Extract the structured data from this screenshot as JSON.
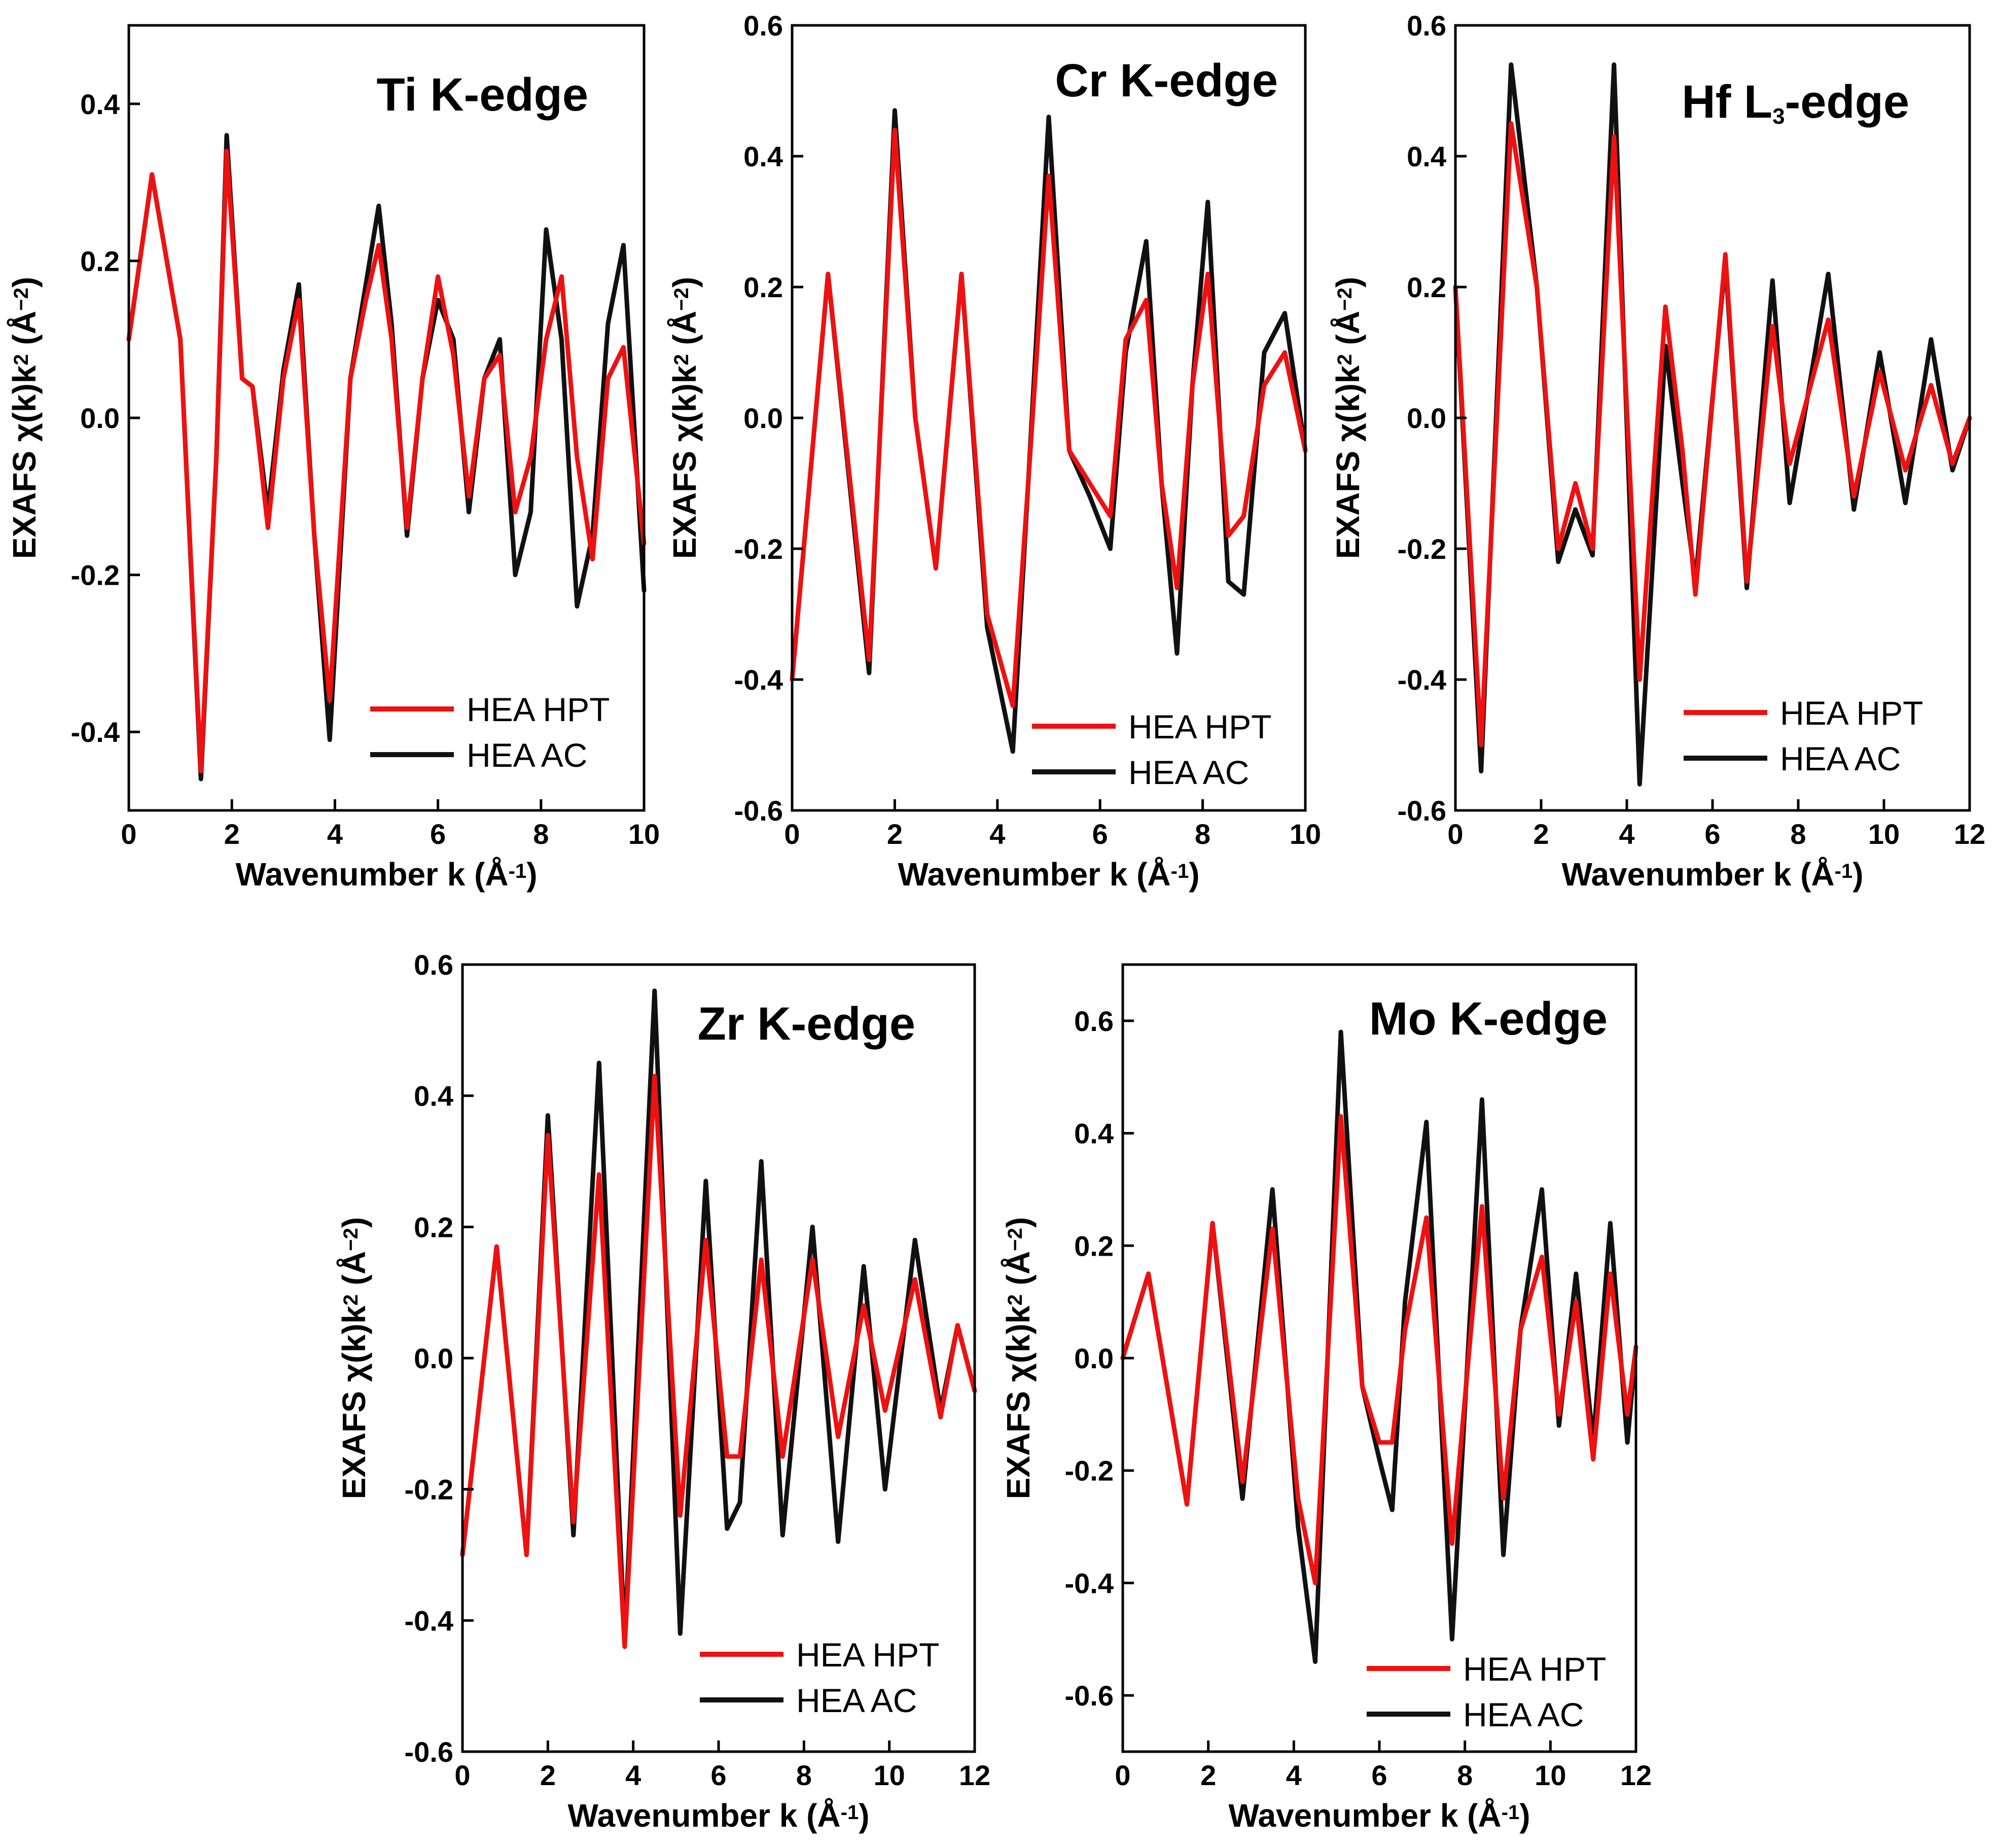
{
  "chart_data": [
    {
      "type": "line",
      "title": "Ti K-edge",
      "title_parts": [
        "Ti K-edge"
      ],
      "xlabel": "Wavenumber k (Å-1)",
      "xlabel_parts": [
        "Wavenumber k (Å",
        "-1",
        ")"
      ],
      "ylabel": "EXAFS χ(k)k2 (Å−2)",
      "ylabel_parts": [
        "EXAFS χ(k)k",
        "2",
        " (Å",
        "−2",
        ")"
      ],
      "xlim": [
        0,
        10
      ],
      "ylim": [
        -0.5,
        0.5
      ],
      "xticks": [
        0,
        2,
        4,
        6,
        8,
        10
      ],
      "xtick_labels": [
        "0",
        "2",
        "4",
        "6",
        "8",
        "10"
      ],
      "yticks": [
        -0.4,
        -0.2,
        0.0,
        0.2,
        0.4
      ],
      "ytick_labels": [
        "-0.4",
        "-0.2",
        "0.0",
        "0.2",
        "0.4"
      ],
      "legend_position": "bottom-right",
      "series": [
        {
          "name": "HEA HPT",
          "color": "#ee1111",
          "x": [
            0,
            0.45,
            1.0,
            1.4,
            1.7,
            1.9,
            2.2,
            2.4,
            2.7,
            3.0,
            3.3,
            3.6,
            3.9,
            4.3,
            4.6,
            4.85,
            5.1,
            5.4,
            5.7,
            6.0,
            6.3,
            6.6,
            6.9,
            7.2,
            7.5,
            7.8,
            8.1,
            8.4,
            8.7,
            9.0,
            9.3,
            9.6,
            10.0
          ],
          "y": [
            0.1,
            0.31,
            0.1,
            -0.45,
            -0.05,
            0.34,
            0.05,
            0.04,
            -0.14,
            0.05,
            0.15,
            -0.15,
            -0.36,
            0.05,
            0.15,
            0.22,
            0.1,
            -0.14,
            0.05,
            0.18,
            0.08,
            -0.1,
            0.05,
            0.08,
            -0.12,
            -0.05,
            0.1,
            0.18,
            -0.05,
            -0.18,
            0.05,
            0.09,
            -0.16
          ]
        },
        {
          "name": "HEA AC",
          "color": "#111111",
          "x": [
            0,
            0.45,
            1.0,
            1.4,
            1.7,
            1.9,
            2.2,
            2.4,
            2.7,
            3.0,
            3.3,
            3.6,
            3.9,
            4.3,
            4.6,
            4.85,
            5.1,
            5.4,
            5.7,
            6.0,
            6.3,
            6.6,
            6.9,
            7.2,
            7.5,
            7.8,
            8.1,
            8.4,
            8.7,
            9.0,
            9.3,
            9.6,
            10.0
          ],
          "y": [
            0.1,
            0.31,
            0.1,
            -0.46,
            -0.05,
            0.36,
            0.05,
            0.04,
            -0.12,
            0.06,
            0.17,
            -0.15,
            -0.41,
            0.05,
            0.17,
            0.27,
            0.12,
            -0.15,
            0.05,
            0.15,
            0.1,
            -0.12,
            0.05,
            0.1,
            -0.2,
            -0.12,
            0.24,
            0.1,
            -0.24,
            -0.15,
            0.12,
            0.22,
            -0.22
          ]
        }
      ]
    },
    {
      "type": "line",
      "title": "Cr K-edge",
      "title_parts": [
        "Cr K-edge"
      ],
      "xlabel": "Wavenumber k (Å-1)",
      "xlabel_parts": [
        "Wavenumber k (Å",
        "-1",
        ")"
      ],
      "ylabel": "EXAFS χ(k)k2 (Å−2)",
      "ylabel_parts": [
        "EXAFS χ(k)k",
        "2",
        " (Å",
        "−2",
        ")"
      ],
      "xlim": [
        0,
        10
      ],
      "ylim": [
        -0.6,
        0.6
      ],
      "xticks": [
        0,
        2,
        4,
        6,
        8,
        10
      ],
      "xtick_labels": [
        "0",
        "2",
        "4",
        "6",
        "8",
        "10"
      ],
      "yticks": [
        -0.6,
        -0.4,
        -0.2,
        0.0,
        0.2,
        0.4,
        0.6
      ],
      "ytick_labels": [
        "-0.6",
        "-0.4",
        "-0.2",
        "0.0",
        "0.2",
        "0.4",
        "0.6"
      ],
      "legend_position": "bottom-right",
      "series": [
        {
          "name": "HEA HPT",
          "color": "#ee1111",
          "x": [
            0,
            0.7,
            1.5,
            2.0,
            2.4,
            2.8,
            3.3,
            3.8,
            4.3,
            4.6,
            5.0,
            5.4,
            5.8,
            6.2,
            6.5,
            6.9,
            7.2,
            7.5,
            7.8,
            8.1,
            8.5,
            8.8,
            9.2,
            9.6,
            10.0
          ],
          "y": [
            -0.4,
            0.22,
            -0.37,
            0.44,
            0.0,
            -0.23,
            0.22,
            -0.3,
            -0.44,
            -0.1,
            0.37,
            -0.05,
            -0.1,
            -0.15,
            0.12,
            0.18,
            -0.1,
            -0.26,
            0.05,
            0.22,
            -0.18,
            -0.15,
            0.05,
            0.1,
            -0.05
          ]
        },
        {
          "name": "HEA AC",
          "color": "#111111",
          "x": [
            0,
            0.7,
            1.5,
            2.0,
            2.4,
            2.8,
            3.3,
            3.8,
            4.3,
            4.6,
            5.0,
            5.4,
            5.8,
            6.2,
            6.5,
            6.9,
            7.2,
            7.5,
            7.8,
            8.1,
            8.5,
            8.8,
            9.2,
            9.6,
            10.0
          ],
          "y": [
            -0.4,
            0.22,
            -0.39,
            0.47,
            0.0,
            -0.23,
            0.22,
            -0.32,
            -0.51,
            -0.1,
            0.46,
            -0.05,
            -0.12,
            -0.2,
            0.1,
            0.27,
            -0.1,
            -0.36,
            0.05,
            0.33,
            -0.25,
            -0.27,
            0.1,
            0.16,
            -0.05
          ]
        }
      ]
    },
    {
      "type": "line",
      "title": "Hf L3-edge",
      "title_parts": [
        "Hf L",
        "3",
        "-edge"
      ],
      "xlabel": "Wavenumber k (Å-1)",
      "xlabel_parts": [
        "Wavenumber k (Å",
        "-1",
        ")"
      ],
      "ylabel": "EXAFS χ(k)k2 (Å−2)",
      "ylabel_parts": [
        "EXAFS χ(k)k",
        "2",
        " (Å",
        "−2",
        ")"
      ],
      "xlim": [
        0,
        12
      ],
      "ylim": [
        -0.6,
        0.6
      ],
      "xticks": [
        0,
        2,
        4,
        6,
        8,
        10,
        12
      ],
      "xtick_labels": [
        "0",
        "2",
        "4",
        "6",
        "8",
        "10",
        "12"
      ],
      "yticks": [
        -0.6,
        -0.4,
        -0.2,
        0.0,
        0.2,
        0.4,
        0.6
      ],
      "ytick_labels": [
        "-0.6",
        "-0.4",
        "-0.2",
        "0.0",
        "0.2",
        "0.4",
        "0.6"
      ],
      "legend_position": "bottom-right",
      "series": [
        {
          "name": "HEA HPT",
          "color": "#ee1111",
          "x": [
            0,
            0.6,
            1.3,
            1.9,
            2.4,
            2.8,
            3.2,
            3.7,
            4.3,
            4.9,
            5.3,
            5.6,
            6.3,
            6.8,
            7.4,
            7.8,
            8.7,
            9.3,
            9.9,
            10.5,
            11.1,
            11.6,
            12.0
          ],
          "y": [
            0.2,
            -0.5,
            0.45,
            0.2,
            -0.2,
            -0.1,
            -0.2,
            0.43,
            -0.4,
            0.17,
            -0.05,
            -0.27,
            0.25,
            -0.25,
            0.14,
            -0.07,
            0.15,
            -0.12,
            0.07,
            -0.08,
            0.05,
            -0.07,
            0.0
          ]
        },
        {
          "name": "HEA AC",
          "color": "#111111",
          "x": [
            0,
            0.6,
            1.3,
            1.9,
            2.4,
            2.8,
            3.2,
            3.7,
            4.3,
            4.9,
            5.3,
            5.6,
            6.3,
            6.8,
            7.4,
            7.8,
            8.7,
            9.3,
            9.9,
            10.5,
            11.1,
            11.6,
            12.0
          ],
          "y": [
            0.2,
            -0.54,
            0.54,
            0.2,
            -0.22,
            -0.14,
            -0.21,
            0.54,
            -0.56,
            0.11,
            -0.1,
            -0.25,
            0.24,
            -0.26,
            0.21,
            -0.13,
            0.22,
            -0.14,
            0.1,
            -0.13,
            0.12,
            -0.08,
            0.0
          ]
        }
      ]
    },
    {
      "type": "line",
      "title": "Zr K-edge",
      "title_parts": [
        "Zr K-edge"
      ],
      "xlabel": "Wavenumber k (Å-1)",
      "xlabel_parts": [
        "Wavenumber k (Å",
        "-1",
        ")"
      ],
      "ylabel": "EXAFS χ(k)k2 (Å−2)",
      "ylabel_parts": [
        "EXAFS χ(k)k",
        "2",
        " (Å",
        "−2",
        ")"
      ],
      "xlim": [
        0,
        12
      ],
      "ylim": [
        -0.6,
        0.6
      ],
      "xticks": [
        0,
        2,
        4,
        6,
        8,
        10,
        12
      ],
      "xtick_labels": [
        "0",
        "2",
        "4",
        "6",
        "8",
        "10",
        "12"
      ],
      "yticks": [
        -0.6,
        -0.4,
        -0.2,
        0.0,
        0.2,
        0.4,
        0.6
      ],
      "ytick_labels": [
        "-0.6",
        "-0.4",
        "-0.2",
        "0.0",
        "0.2",
        "0.4",
        "0.6"
      ],
      "legend_position": "bottom-right",
      "series": [
        {
          "name": "HEA HPT",
          "color": "#ee1111",
          "x": [
            0,
            0.8,
            1.5,
            2.0,
            2.6,
            3.2,
            3.8,
            4.5,
            5.1,
            5.7,
            6.2,
            6.5,
            7.0,
            7.5,
            8.2,
            8.8,
            9.4,
            9.9,
            10.6,
            11.2,
            11.6,
            12.0
          ],
          "y": [
            -0.3,
            0.17,
            -0.3,
            0.34,
            -0.25,
            0.28,
            -0.44,
            0.43,
            -0.24,
            0.18,
            -0.15,
            -0.15,
            0.15,
            -0.15,
            0.15,
            -0.12,
            0.08,
            -0.08,
            0.12,
            -0.09,
            0.05,
            -0.05
          ]
        },
        {
          "name": "HEA AC",
          "color": "#111111",
          "x": [
            0,
            0.8,
            1.5,
            2.0,
            2.6,
            3.2,
            3.8,
            4.5,
            5.1,
            5.7,
            6.2,
            6.5,
            7.0,
            7.5,
            8.2,
            8.8,
            9.4,
            9.9,
            10.6,
            11.2,
            11.6,
            12.0
          ],
          "y": [
            -0.3,
            0.17,
            -0.3,
            0.37,
            -0.27,
            0.45,
            -0.43,
            0.56,
            -0.42,
            0.27,
            -0.26,
            -0.22,
            0.3,
            -0.27,
            0.2,
            -0.28,
            0.14,
            -0.2,
            0.18,
            -0.08,
            0.05,
            -0.05
          ]
        }
      ]
    },
    {
      "type": "line",
      "title": "Mo K-edge",
      "title_parts": [
        "Mo K-edge"
      ],
      "xlabel": "Wavenumber k (Å-1)",
      "xlabel_parts": [
        "Wavenumber k (Å",
        "-1",
        ")"
      ],
      "ylabel": "EXAFS χ(k)k2 (Å−2)",
      "ylabel_parts": [
        "EXAFS χ(k)k",
        "2",
        " (Å",
        "−2",
        ")"
      ],
      "xlim": [
        0,
        12
      ],
      "ylim": [
        -0.7,
        0.7
      ],
      "xticks": [
        0,
        2,
        4,
        6,
        8,
        10,
        12
      ],
      "xtick_labels": [
        "0",
        "2",
        "4",
        "6",
        "8",
        "10",
        "12"
      ],
      "yticks": [
        -0.6,
        -0.4,
        -0.2,
        0.0,
        0.2,
        0.4,
        0.6
      ],
      "ytick_labels": [
        "-0.6",
        "-0.4",
        "-0.2",
        "0.0",
        "0.2",
        "0.4",
        "0.6"
      ],
      "legend_position": "bottom-right",
      "series": [
        {
          "name": "HEA HPT",
          "color": "#ee1111",
          "x": [
            0,
            0.6,
            1.5,
            2.1,
            2.8,
            3.5,
            4.1,
            4.5,
            5.1,
            5.6,
            6.0,
            6.3,
            6.6,
            7.1,
            7.7,
            8.4,
            8.9,
            9.3,
            9.8,
            10.2,
            10.6,
            11.0,
            11.4,
            11.8,
            12.0
          ],
          "y": [
            0.0,
            0.15,
            -0.26,
            0.24,
            -0.22,
            0.23,
            -0.25,
            -0.4,
            0.43,
            -0.05,
            -0.15,
            -0.15,
            0.05,
            0.25,
            -0.33,
            0.27,
            -0.25,
            0.05,
            0.18,
            -0.1,
            0.1,
            -0.18,
            0.15,
            -0.1,
            0.02
          ]
        },
        {
          "name": "HEA AC",
          "color": "#111111",
          "x": [
            0,
            0.6,
            1.5,
            2.1,
            2.8,
            3.5,
            4.1,
            4.5,
            5.1,
            5.6,
            6.0,
            6.3,
            6.6,
            7.1,
            7.7,
            8.4,
            8.9,
            9.3,
            9.8,
            10.2,
            10.6,
            11.0,
            11.4,
            11.8,
            12.0
          ],
          "y": [
            0.0,
            0.15,
            -0.26,
            0.24,
            -0.25,
            0.3,
            -0.3,
            -0.54,
            0.58,
            -0.05,
            -0.18,
            -0.27,
            0.1,
            0.42,
            -0.5,
            0.46,
            -0.35,
            0.05,
            0.3,
            -0.12,
            0.15,
            -0.15,
            0.24,
            -0.15,
            0.02
          ]
        }
      ]
    }
  ]
}
